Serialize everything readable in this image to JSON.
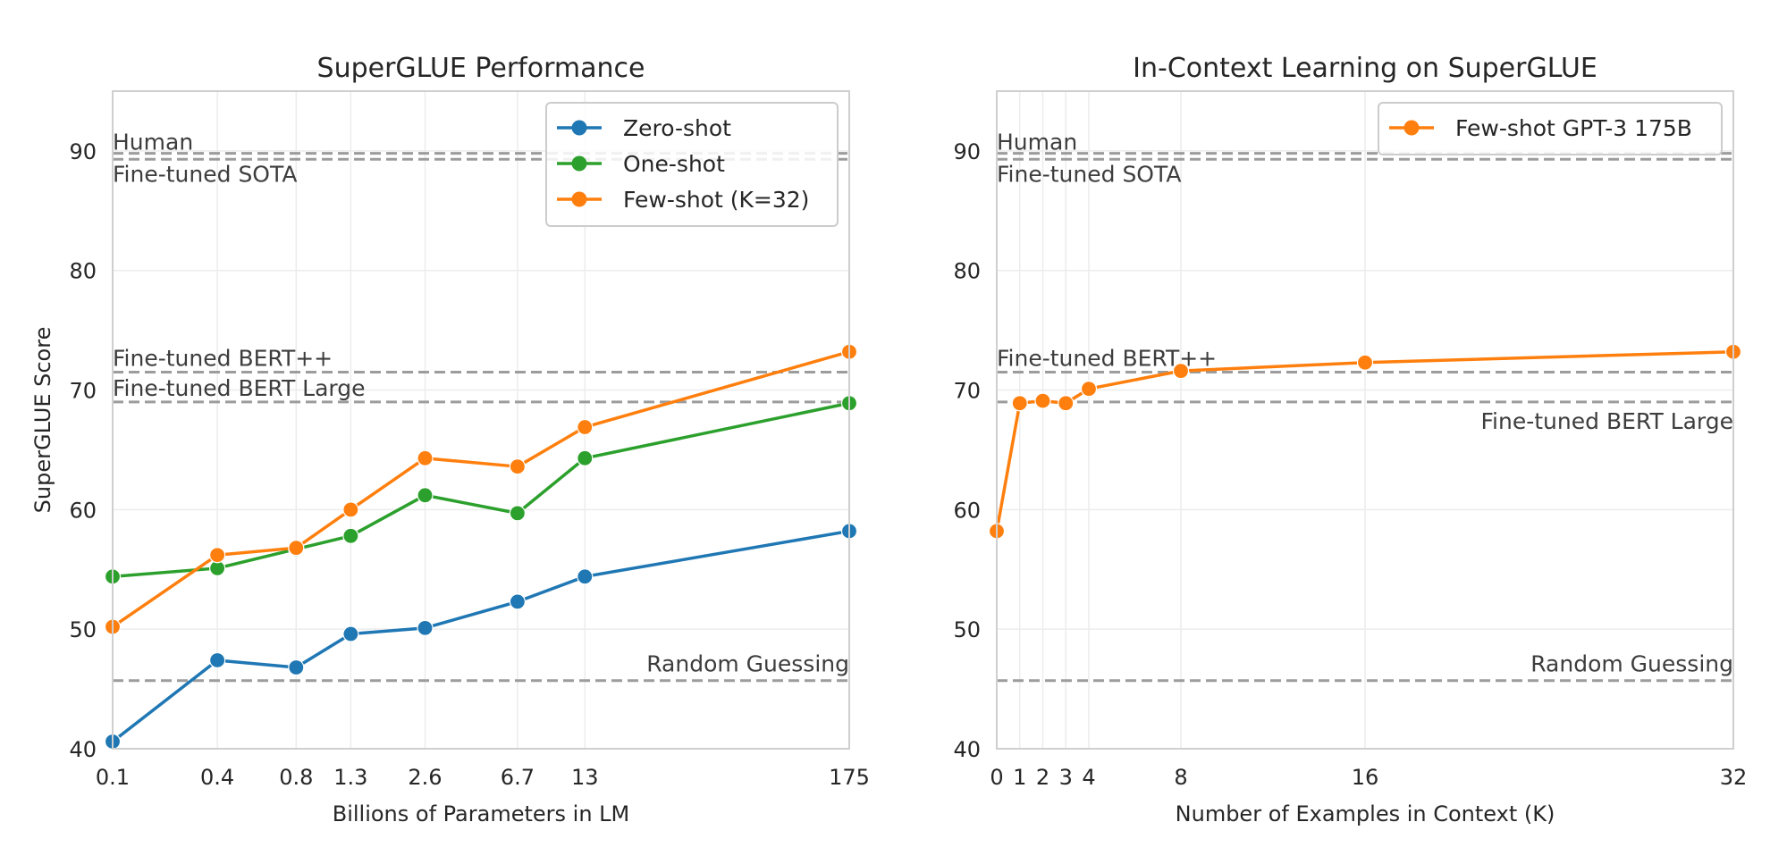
{
  "chart_data": [
    {
      "type": "line",
      "title": "SuperGLUE Performance",
      "xlabel": "Billions of Parameters in LM",
      "ylabel": "SuperGLUE Score",
      "ylim": [
        40,
        95
      ],
      "yticks": [
        40,
        50,
        60,
        70,
        80,
        90
      ],
      "categories": [
        "0.1",
        "0.4",
        "0.8",
        "1.3",
        "2.6",
        "6.7",
        "13",
        "175"
      ],
      "x": [
        0.125,
        0.35,
        0.76,
        1.3,
        2.7,
        6.7,
        13,
        175
      ],
      "xscale": "log",
      "grid": true,
      "legend_position": "top-right",
      "series": [
        {
          "name": "Zero-shot",
          "color": "#1f77b4",
          "values": [
            40.6,
            47.4,
            46.8,
            49.6,
            50.1,
            52.3,
            54.4,
            58.2
          ]
        },
        {
          "name": "One-shot",
          "color": "#2ca02c",
          "values": [
            54.4,
            55.1,
            56.7,
            57.8,
            61.2,
            59.7,
            64.3,
            68.9
          ]
        },
        {
          "name": "Few-shot (K=32)",
          "color": "#ff7f0e",
          "values": [
            50.2,
            56.2,
            56.8,
            60.0,
            64.3,
            63.6,
            66.9,
            73.2
          ]
        }
      ],
      "reference_lines": [
        {
          "label": "Human",
          "value": 89.8
        },
        {
          "label": "Fine-tuned SOTA",
          "value": 89.3
        },
        {
          "label": "Fine-tuned BERT++",
          "value": 71.5
        },
        {
          "label": "Fine-tuned BERT Large",
          "value": 69.0
        },
        {
          "label": "Random Guessing",
          "value": 45.7
        }
      ]
    },
    {
      "type": "line",
      "title": "In-Context Learning on SuperGLUE",
      "xlabel": "Number of Examples in Context (K)",
      "ylabel": "",
      "ylim": [
        40,
        95
      ],
      "yticks": [
        40,
        50,
        60,
        70,
        80,
        90
      ],
      "xlim": [
        0,
        32
      ],
      "xticks": [
        0,
        1,
        2,
        3,
        4,
        8,
        16,
        32
      ],
      "grid": true,
      "legend_position": "top-right",
      "series": [
        {
          "name": "Few-shot GPT-3 175B",
          "color": "#ff7f0e",
          "x": [
            0,
            1,
            2,
            3,
            4,
            8,
            16,
            32
          ],
          "values": [
            58.2,
            68.9,
            69.1,
            68.9,
            70.1,
            71.6,
            72.3,
            73.2
          ]
        }
      ],
      "reference_lines": [
        {
          "label": "Human",
          "value": 89.8
        },
        {
          "label": "Fine-tuned SOTA",
          "value": 89.3
        },
        {
          "label": "Fine-tuned BERT++",
          "value": 71.5
        },
        {
          "label": "Fine-tuned BERT Large",
          "value": 69.0
        },
        {
          "label": "Random Guessing",
          "value": 45.7
        }
      ]
    }
  ]
}
